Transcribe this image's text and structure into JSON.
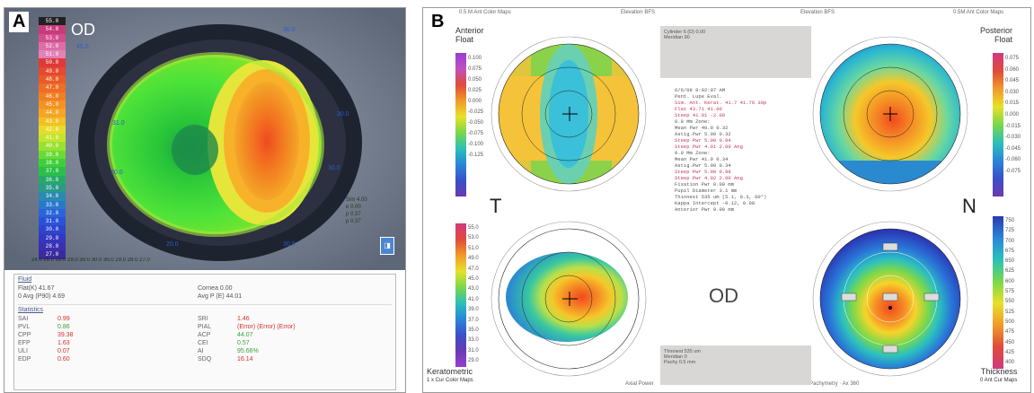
{
  "panel_a": {
    "letter": "A",
    "eye_label": "OD",
    "color_scale": [
      "55.0",
      "54.0",
      "53.0",
      "52.0",
      "51.0",
      "50.0",
      "49.0",
      "48.0",
      "47.0",
      "46.0",
      "45.0",
      "44.0",
      "43.0",
      "42.0",
      "41.0",
      "40.0",
      "39.0",
      "38.0",
      "37.0",
      "36.0",
      "35.0",
      "34.0",
      "33.0",
      "32.0",
      "31.0",
      "30.0",
      "29.0",
      "28.0",
      "27.0"
    ],
    "info_box": [
      "Sim 4.00",
      "e 0.00",
      "p 0.37",
      "p 0.37"
    ],
    "bottom_strip": "24.0  26.0  28.0 29.0 30.0 30.0 30.0 29.0 28.0 27.0",
    "table": {
      "fluid_head": "Fluid",
      "fluid_rows": [
        [
          "Flat(K) 41.67",
          "Cornea 0.00"
        ],
        [
          "0 Avg (P90) 4.69",
          "Avg P (E) 44.01"
        ]
      ],
      "stats_head": "Statistics",
      "stats_rows": [
        [
          "SAI",
          "0.99",
          "SRI",
          "1.46"
        ],
        [
          "PVL",
          "0.86",
          "PIAL",
          "(Error) (Error) (Error)"
        ],
        [
          "CPP",
          "39.38",
          "ACP",
          "44.07"
        ],
        [
          "EFP",
          "1.63",
          "CEI",
          "0.57"
        ],
        [
          "ULI",
          "0.07",
          "AI",
          "95.66%"
        ],
        [
          "EDP",
          "0.60",
          "SDQ",
          "16.14"
        ]
      ]
    }
  },
  "panel_b": {
    "letter": "B",
    "top_left": [
      "Anterior",
      "Float"
    ],
    "top_right": [
      "Posterior",
      "Float"
    ],
    "bottom_left": [
      "Keratometric"
    ],
    "bottom_right": [
      "Thickness"
    ],
    "T": "T",
    "N": "N",
    "OD": "OD",
    "anterior_scale": [
      "0.100",
      "0.075",
      "0.050",
      "0.025",
      "0.000",
      "-0.025",
      "-0.050",
      "-0.075",
      "-0.100",
      "-0.125"
    ],
    "posterior_scale": [
      "0.075",
      "0.060",
      "0.045",
      "0.030",
      "0.015",
      "0.000",
      "-0.015",
      "-0.030",
      "-0.045",
      "-0.060",
      "-0.075"
    ],
    "kerato_scale": [
      "55.0",
      "53.0",
      "51.0",
      "49.0",
      "47.0",
      "45.0",
      "43.0",
      "41.0",
      "39.0",
      "37.0",
      "35.0",
      "33.0",
      "31.0",
      "29.0"
    ],
    "thick_scale": [
      "750",
      "725",
      "700",
      "675",
      "650",
      "625",
      "600",
      "575",
      "550",
      "525",
      "500",
      "475",
      "450",
      "425",
      "400"
    ],
    "middle_text": [
      "6/6/08 9:02:07 AM",
      "Pent. Lupe Eval.",
      "",
      "Sim. Ant. Kerat.  41.7  41.76 30p",
      "Flat    43.71  41.00",
      "Steep   41.01 -2.00",
      "0.8 Mm Zone:",
      "Mean Pwr  40.0  0.32",
      "Astig.Pwr  5.00  0.32",
      "Steep Pwr  5.00  0.94",
      "Steep Pwr  4.01  2.00 Ang",
      "0.9 Mm Zone:",
      "Mean Pwr  41.9  0.34",
      "Astig.Pwr  5.00  0.34",
      "Steep Pwr  5.00  0.98",
      "Steep Pwr  4.02  2.00 Ang",
      "Fixation Pwr  0.00 mm",
      "Pupil Diameter  3.1 mm",
      "Thinnest  535 um (5.1, 0.3, 60°)",
      "Kappa Intercept  -0.12, 0.08",
      "Anterior Pwr  0.00 mm"
    ],
    "header_left": "0.5 M Ant Color Maps",
    "header_mid_l": "Elevation BFS",
    "header_mid_r": "Elevation BFS",
    "header_right": "0.5M Ant Color Maps",
    "top_box": [
      "Cylinder 6 (D)  0.00",
      "Meridian  90"
    ],
    "bottom_box": [
      "Thinnest  535 um",
      "Meridian  0",
      "Pachy  0.5 mm"
    ],
    "bottom_left_small": "1 x Cur Color Maps",
    "bottom_center_small": "Axial Power",
    "bottom_right_small": "Pachymetry · Ax 360",
    "bottom_right_small2": "0 Ant Cur Maps"
  }
}
